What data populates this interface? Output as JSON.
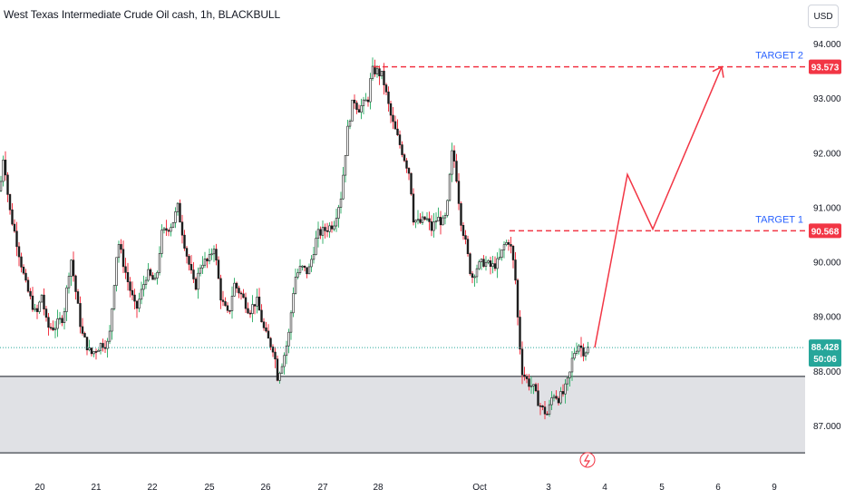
{
  "header": {
    "title": "West Texas Intermediate Crude Oil cash, 1h, BLACKBULL",
    "currency_button": "USD"
  },
  "chart_data": {
    "type": "candlestick",
    "symbol": "West Texas Intermediate Crude Oil cash",
    "interval": "1h",
    "broker": "BLACKBULL",
    "currency": "USD",
    "y_ticks": [
      "94.000",
      "93.000",
      "92.000",
      "91.000",
      "90.000",
      "89.000",
      "88.000",
      "87.000"
    ],
    "ylim": [
      86.75,
      94.35
    ],
    "x_ticks": [
      "20",
      "21",
      "22",
      "25",
      "26",
      "27",
      "28",
      "Oct",
      "3",
      "4",
      "5",
      "6",
      "9"
    ],
    "price_anchors": [
      [
        0,
        91.3
      ],
      [
        4,
        92.0
      ],
      [
        10,
        91.0
      ],
      [
        18,
        90.4
      ],
      [
        28,
        89.6
      ],
      [
        40,
        89.0
      ],
      [
        46,
        89.4
      ],
      [
        52,
        88.8
      ],
      [
        60,
        88.8
      ],
      [
        70,
        89.0
      ],
      [
        78,
        90.1
      ],
      [
        90,
        88.7
      ],
      [
        100,
        88.3
      ],
      [
        112,
        88.5
      ],
      [
        120,
        88.5
      ],
      [
        130,
        90.4
      ],
      [
        140,
        89.7
      ],
      [
        150,
        89.1
      ],
      [
        162,
        89.8
      ],
      [
        172,
        89.6
      ],
      [
        178,
        90.5
      ],
      [
        190,
        90.7
      ],
      [
        196,
        91.0
      ],
      [
        205,
        90.2
      ],
      [
        215,
        89.5
      ],
      [
        222,
        90.0
      ],
      [
        230,
        90.0
      ],
      [
        236,
        90.3
      ],
      [
        244,
        89.3
      ],
      [
        252,
        89.0
      ],
      [
        258,
        89.6
      ],
      [
        266,
        89.4
      ],
      [
        275,
        89.1
      ],
      [
        283,
        89.3
      ],
      [
        292,
        88.7
      ],
      [
        298,
        88.5
      ],
      [
        302,
        88.4
      ],
      [
        306,
        87.9
      ],
      [
        312,
        88.2
      ],
      [
        318,
        88.6
      ],
      [
        325,
        89.7
      ],
      [
        332,
        89.9
      ],
      [
        340,
        89.8
      ],
      [
        350,
        90.5
      ],
      [
        360,
        90.6
      ],
      [
        368,
        90.7
      ],
      [
        376,
        91.2
      ],
      [
        384,
        92.5
      ],
      [
        390,
        93.0
      ],
      [
        395,
        92.8
      ],
      [
        402,
        92.9
      ],
      [
        406,
        93.0
      ],
      [
        410,
        93.5
      ],
      [
        415,
        93.5
      ],
      [
        422,
        93.4
      ],
      [
        428,
        92.9
      ],
      [
        432,
        92.6
      ],
      [
        438,
        92.3
      ],
      [
        446,
        91.9
      ],
      [
        452,
        91.6
      ],
      [
        456,
        90.8
      ],
      [
        462,
        90.7
      ],
      [
        470,
        90.8
      ],
      [
        476,
        90.6
      ],
      [
        482,
        90.8
      ],
      [
        490,
        90.7
      ],
      [
        494,
        91.1
      ],
      [
        498,
        92.0
      ],
      [
        502,
        91.8
      ],
      [
        508,
        90.8
      ],
      [
        514,
        90.3
      ],
      [
        520,
        89.7
      ],
      [
        526,
        89.9
      ],
      [
        534,
        90.0
      ],
      [
        542,
        89.9
      ],
      [
        550,
        90.0
      ],
      [
        556,
        90.3
      ],
      [
        562,
        90.4
      ],
      [
        568,
        89.8
      ],
      [
        572,
        88.7
      ],
      [
        576,
        88.0
      ],
      [
        582,
        87.8
      ],
      [
        588,
        87.7
      ],
      [
        592,
        87.5
      ],
      [
        598,
        87.3
      ],
      [
        604,
        87.2
      ],
      [
        610,
        87.6
      ],
      [
        616,
        87.5
      ],
      [
        622,
        87.6
      ],
      [
        628,
        87.9
      ],
      [
        632,
        88.3
      ],
      [
        638,
        88.5
      ],
      [
        644,
        88.35
      ],
      [
        650,
        88.43
      ]
    ],
    "current_price": "88.428",
    "countdown": "50:06",
    "targets": [
      {
        "label": "TARGET 2",
        "price": 93.573,
        "price_text": "93.573"
      },
      {
        "label": "TARGET 1",
        "price": 90.568,
        "price_text": "90.568"
      }
    ],
    "support_zone": [
      86.5,
      87.9
    ],
    "projection_path": [
      [
        656,
        88.43
      ],
      [
        692,
        91.6
      ],
      [
        720,
        90.6
      ],
      [
        796,
        93.573
      ]
    ],
    "colors": {
      "up": "#1a1a1a",
      "down": "#1a1a1a",
      "up_wick": "#3cb371",
      "down_wick": "#f23645",
      "target_line": "#f23645",
      "target_text": "#2962ff",
      "price_badge": "#26a69a",
      "zone_fill": "#e0e1e5",
      "projection": "#f23645"
    },
    "grid": false,
    "legend": "none"
  }
}
